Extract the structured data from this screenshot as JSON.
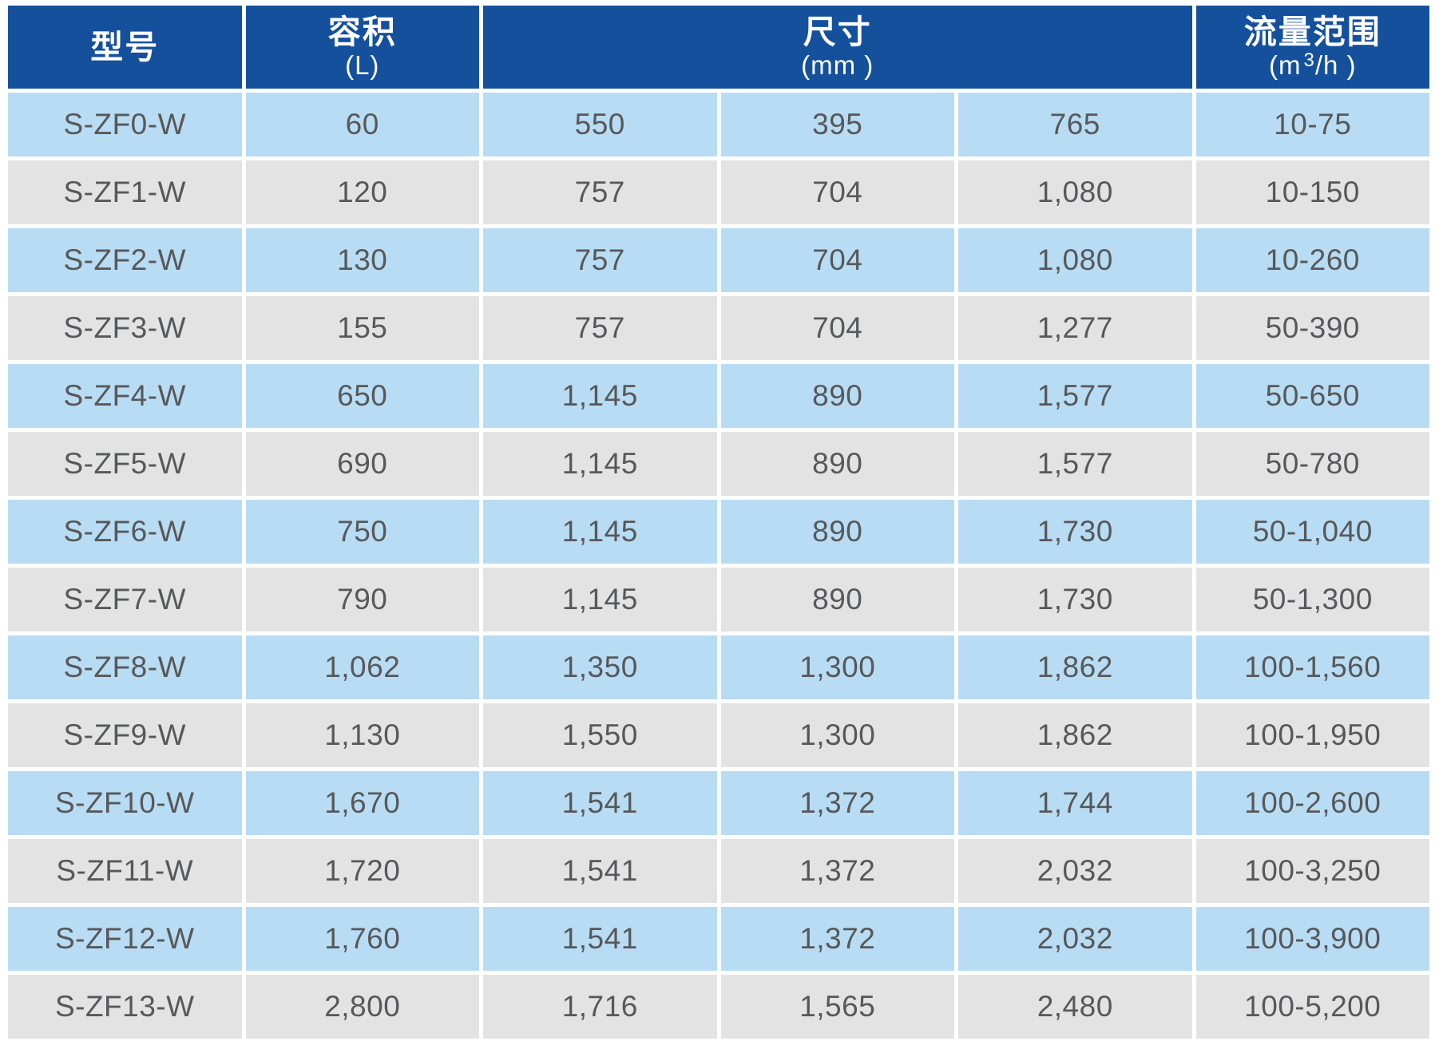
{
  "colors": {
    "header_bg": "#15509d",
    "header_text": "#ffffff",
    "row_blue": "#b8dcf3",
    "row_gray": "#e3e3e3",
    "cell_text": "#57585a"
  },
  "table": {
    "headers": {
      "model": {
        "title": "型号",
        "unit": ""
      },
      "capacity": {
        "title": "容积",
        "unit": "(L)"
      },
      "dimensions": {
        "title": "尺寸",
        "unit": "(mm )"
      },
      "flow": {
        "title": "流量范围",
        "unit_prefix": "(m",
        "unit_sup": "3",
        "unit_suffix": "/h )"
      }
    },
    "rows": [
      {
        "model": "S-ZF0-W",
        "capacity": "60",
        "dims": [
          "550",
          "395",
          "765"
        ],
        "flow": "10-75"
      },
      {
        "model": "S-ZF1-W",
        "capacity": "120",
        "dims": [
          "757",
          "704",
          "1,080"
        ],
        "flow": "10-150"
      },
      {
        "model": "S-ZF2-W",
        "capacity": "130",
        "dims": [
          "757",
          "704",
          "1,080"
        ],
        "flow": "10-260"
      },
      {
        "model": "S-ZF3-W",
        "capacity": "155",
        "dims": [
          "757",
          "704",
          "1,277"
        ],
        "flow": "50-390"
      },
      {
        "model": "S-ZF4-W",
        "capacity": "650",
        "dims": [
          "1,145",
          "890",
          "1,577"
        ],
        "flow": "50-650"
      },
      {
        "model": "S-ZF5-W",
        "capacity": "690",
        "dims": [
          "1,145",
          "890",
          "1,577"
        ],
        "flow": "50-780"
      },
      {
        "model": "S-ZF6-W",
        "capacity": "750",
        "dims": [
          "1,145",
          "890",
          "1,730"
        ],
        "flow": "50-1,040"
      },
      {
        "model": "S-ZF7-W",
        "capacity": "790",
        "dims": [
          "1,145",
          "890",
          "1,730"
        ],
        "flow": "50-1,300"
      },
      {
        "model": "S-ZF8-W",
        "capacity": "1,062",
        "dims": [
          "1,350",
          "1,300",
          "1,862"
        ],
        "flow": "100-1,560"
      },
      {
        "model": "S-ZF9-W",
        "capacity": "1,130",
        "dims": [
          "1,550",
          "1,300",
          "1,862"
        ],
        "flow": "100-1,950"
      },
      {
        "model": "S-ZF10-W",
        "capacity": "1,670",
        "dims": [
          "1,541",
          "1,372",
          "1,744"
        ],
        "flow": "100-2,600"
      },
      {
        "model": "S-ZF11-W",
        "capacity": "1,720",
        "dims": [
          "1,541",
          "1,372",
          "2,032"
        ],
        "flow": "100-3,250"
      },
      {
        "model": "S-ZF12-W",
        "capacity": "1,760",
        "dims": [
          "1,541",
          "1,372",
          "2,032"
        ],
        "flow": "100-3,900"
      },
      {
        "model": "S-ZF13-W",
        "capacity": "2,800",
        "dims": [
          "1,716",
          "1,565",
          "2,480"
        ],
        "flow": "100-5,200"
      }
    ]
  }
}
